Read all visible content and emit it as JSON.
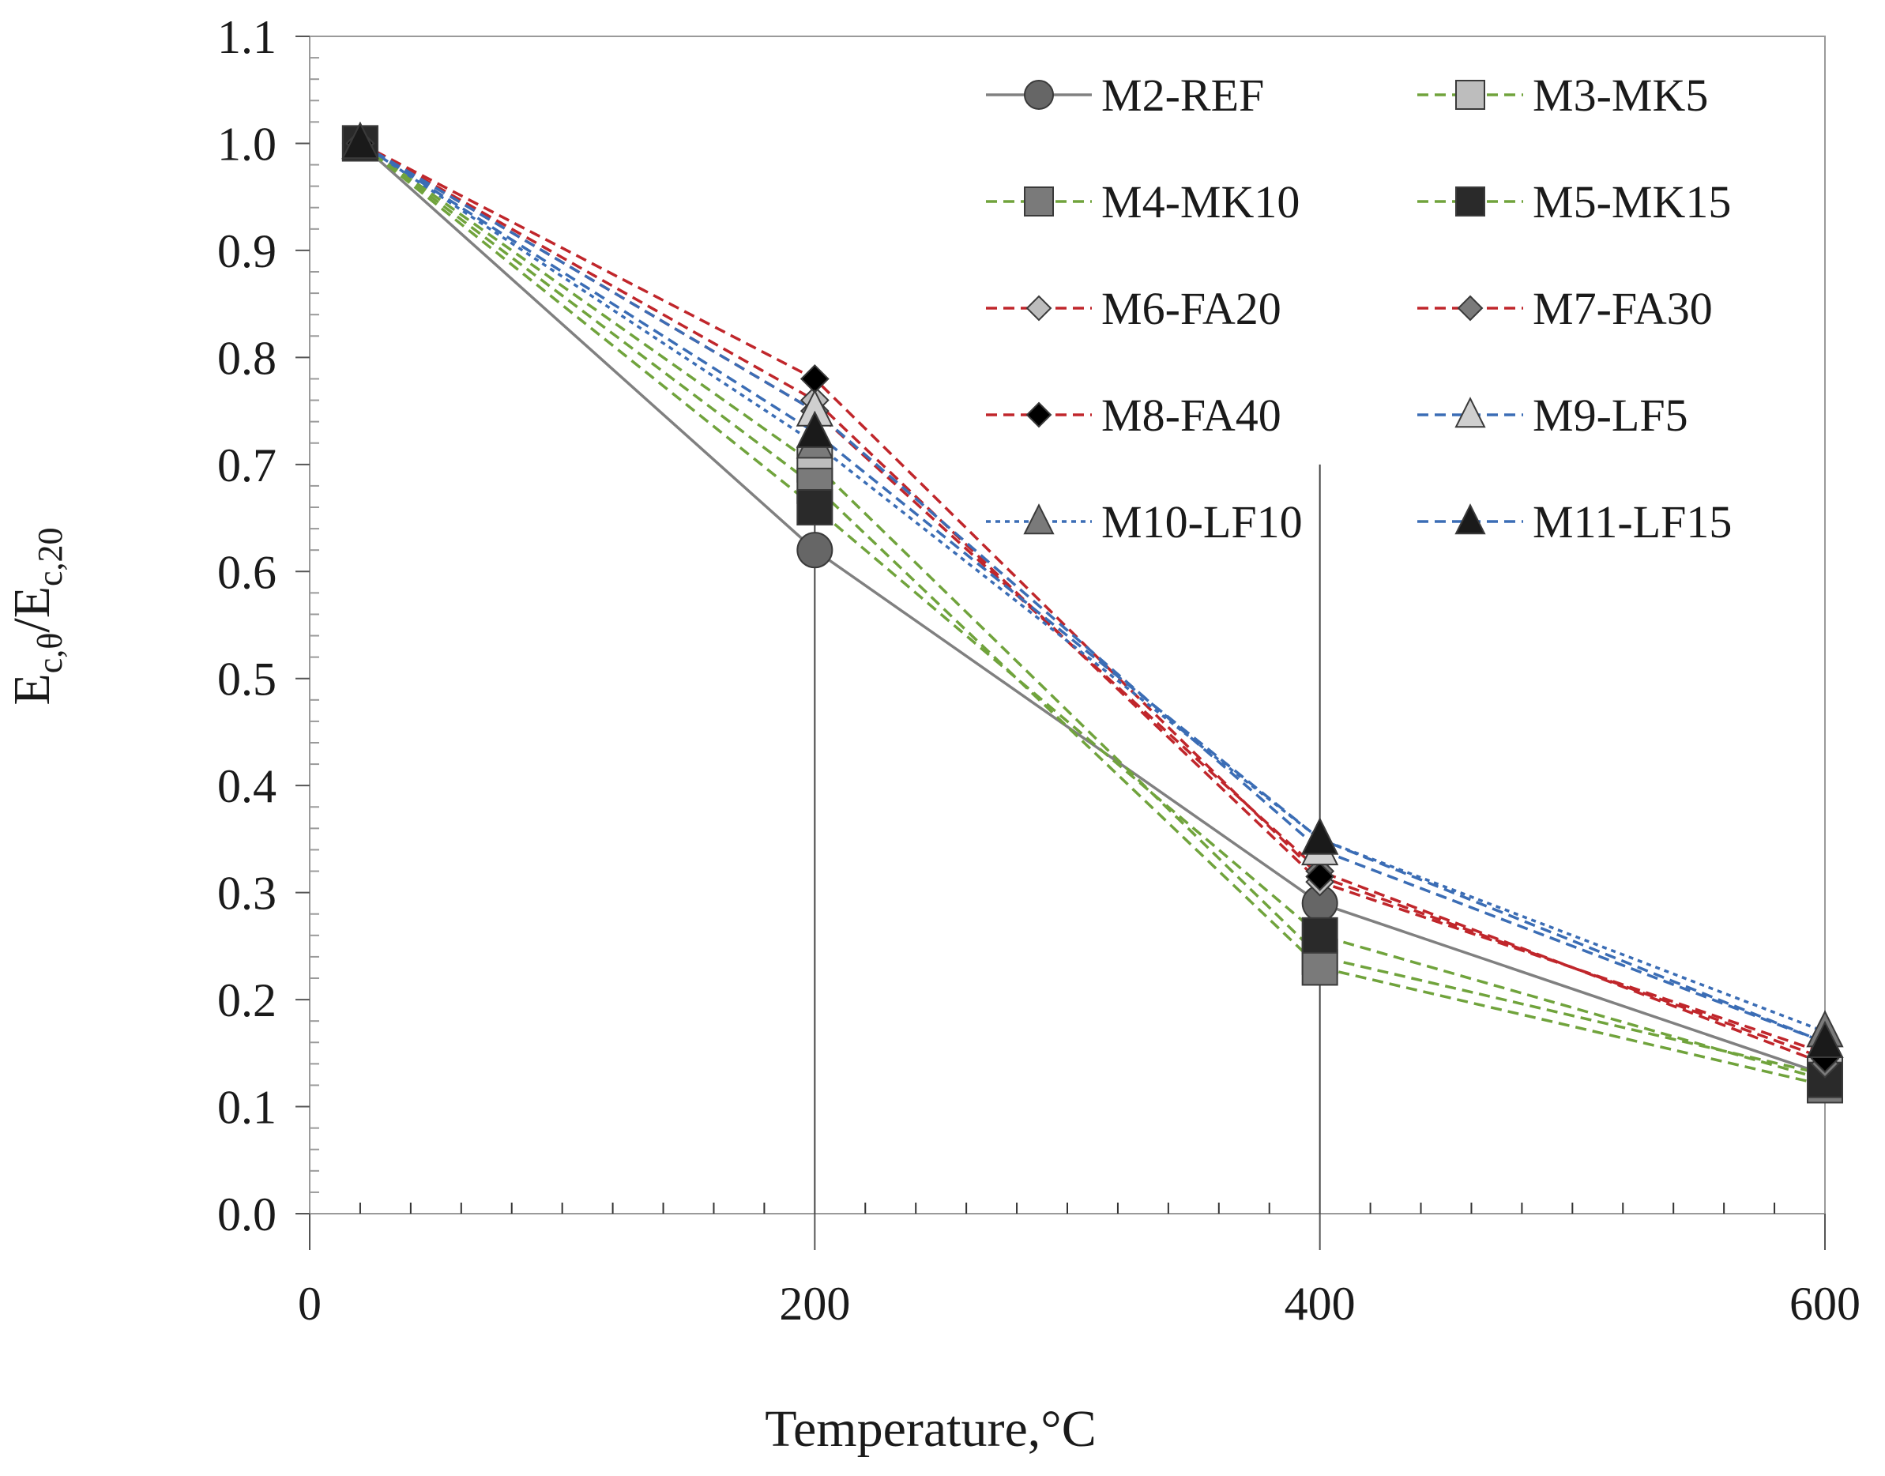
{
  "chart_data": {
    "type": "line",
    "title": "",
    "xlabel": "Temperature,°C",
    "ylabel_main": "E",
    "ylabel_sub1": "c,θ",
    "ylabel_sep": "/E",
    "ylabel_sub2": "c,20",
    "xlim": [
      0,
      600
    ],
    "ylim": [
      0.0,
      1.1
    ],
    "x_ticks": [
      0,
      200,
      400,
      600
    ],
    "x_tick_labels": [
      "0",
      "200",
      "400",
      "600"
    ],
    "y_ticks": [
      0.0,
      0.1,
      0.2,
      0.3,
      0.4,
      0.5,
      0.6,
      0.7,
      0.8,
      0.9,
      1.0,
      1.1
    ],
    "y_tick_labels": [
      "0.0",
      "0.1",
      "0.2",
      "0.3",
      "0.4",
      "0.5",
      "0.6",
      "0.7",
      "0.8",
      "0.9",
      "1.0",
      "1.1"
    ],
    "grid": false,
    "legend_position": "top-right",
    "x": [
      20,
      200,
      400,
      600
    ],
    "series": [
      {
        "name": "M2-REF",
        "values": [
          1.0,
          0.62,
          0.29,
          0.13
        ],
        "color": "#808080",
        "dash": "solid",
        "marker": "circle",
        "marker_fill": "#666666"
      },
      {
        "name": "M3-MK5",
        "values": [
          1.0,
          0.7,
          0.24,
          0.13
        ],
        "color": "#70a33c",
        "dash": "dashed",
        "marker": "square",
        "marker_fill": "#bdbdbd"
      },
      {
        "name": "M4-MK10",
        "values": [
          1.0,
          0.68,
          0.23,
          0.12
        ],
        "color": "#70a33c",
        "dash": "dashed",
        "marker": "square",
        "marker_fill": "#7a7a7a"
      },
      {
        "name": "M5-MK15",
        "values": [
          1.0,
          0.66,
          0.26,
          0.125
        ],
        "color": "#70a33c",
        "dash": "dashed",
        "marker": "square",
        "marker_fill": "#2a2a2a"
      },
      {
        "name": "M6-FA20",
        "values": [
          1.0,
          0.76,
          0.31,
          0.15
        ],
        "color": "#c0262b",
        "dash": "dashed",
        "marker": "diamond",
        "marker_fill": "#bdbdbd"
      },
      {
        "name": "M7-FA30",
        "values": [
          1.0,
          0.75,
          0.32,
          0.14
        ],
        "color": "#c0262b",
        "dash": "dashed",
        "marker": "diamond",
        "marker_fill": "#7a7a7a"
      },
      {
        "name": "M8-FA40",
        "values": [
          1.0,
          0.78,
          0.315,
          0.145
        ],
        "color": "#c0262b",
        "dash": "dashed",
        "marker": "diamond",
        "marker_fill": "#000000"
      },
      {
        "name": "M9-LF5",
        "values": [
          1.0,
          0.75,
          0.34,
          0.16
        ],
        "color": "#3b6db5",
        "dash": "dashed",
        "marker": "triangle",
        "marker_fill": "#cfcfcf"
      },
      {
        "name": "M10-LF10",
        "values": [
          1.0,
          0.72,
          0.35,
          0.17
        ],
        "color": "#3b6db5",
        "dash": "dotted",
        "marker": "triangle",
        "marker_fill": "#7a7a7a"
      },
      {
        "name": "M11-LF15",
        "values": [
          1.0,
          0.73,
          0.35,
          0.16
        ],
        "color": "#3b6db5",
        "dash": "dashed",
        "marker": "triangle",
        "marker_fill": "#1a1a1a"
      }
    ]
  }
}
